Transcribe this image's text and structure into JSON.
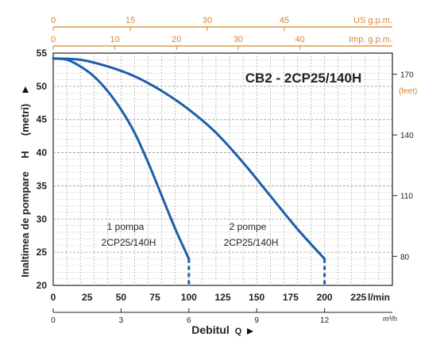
{
  "chart_data": {
    "type": "line",
    "title": "CB2 - 2CP25/140H",
    "ylabel": "Inaltimea de pompare H (metri)",
    "ylabel_parts": {
      "text": "Inaltimea de pompare",
      "symbol": "H",
      "unit": "(metri)"
    },
    "xlabel": "Debitul Q",
    "xlabel_parts": {
      "text": "Debitul",
      "symbol": "Q"
    },
    "ylim": [
      20,
      55
    ],
    "xlim": [
      0,
      250
    ],
    "grid": true,
    "x_main_ticks": [
      "0",
      "25",
      "50",
      "75",
      "100",
      "125",
      "150",
      "175",
      "200",
      "225"
    ],
    "x_main_unit": "l/min",
    "x_m3h_ticks": [
      "0",
      "3",
      "6",
      "9",
      "12"
    ],
    "x_m3h_unit": "m³/h",
    "x_us_ticks": [
      "0",
      "15",
      "30",
      "45"
    ],
    "x_us_unit": "US g.p.m.",
    "x_imp_ticks": [
      "0",
      "10",
      "20",
      "30",
      "40"
    ],
    "x_imp_unit": "Imp. g.p.m.",
    "y_ticks": [
      "20",
      "25",
      "30",
      "35",
      "40",
      "45",
      "50",
      "55"
    ],
    "y_feet_ticks": [
      "170",
      "140",
      "110",
      "80"
    ],
    "y_feet_unit": "(feet)",
    "series": [
      {
        "name": "1 pompa 2CP25/140H",
        "label_line1": "1 pompa",
        "label_line2": "2CP25/140H",
        "x": [
          0,
          10,
          20,
          30,
          40,
          50,
          60,
          70,
          80,
          90,
          100
        ],
        "y": [
          54.2,
          54.0,
          53.0,
          51.5,
          49.3,
          46.5,
          43.0,
          38.5,
          33.5,
          28.5,
          24.0
        ]
      },
      {
        "name": "2 pompe 2CP25/140H",
        "label_line1": "2 pompe",
        "label_line2": "2CP25/140H",
        "x": [
          0,
          20,
          40,
          60,
          80,
          100,
          120,
          140,
          160,
          180,
          200
        ],
        "y": [
          54.2,
          54.0,
          53.0,
          51.5,
          49.3,
          46.5,
          43.0,
          38.5,
          33.5,
          28.5,
          24.0
        ]
      }
    ],
    "colors": {
      "curve": "#1d5ea8",
      "grid": "#999999",
      "label_accent": "#d8862a",
      "axis": "#222222"
    }
  }
}
